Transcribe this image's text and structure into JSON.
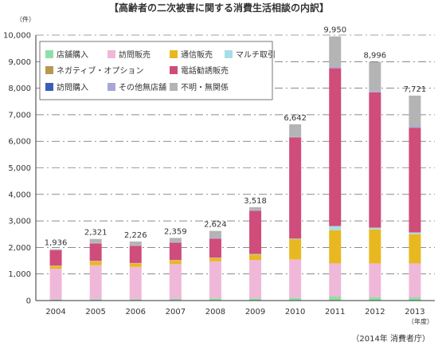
{
  "chart_data": {
    "type": "bar",
    "stacked": true,
    "title": "【高齢者の二次被害に関する消費生活相談の内訳】",
    "ylabel": "（件）",
    "xlabel_suffix": "（年度）",
    "source": "（2014年 消費者庁）",
    "ylim": [
      0,
      10000
    ],
    "yticks": [
      0,
      1000,
      2000,
      3000,
      4000,
      5000,
      6000,
      7000,
      8000,
      9000,
      10000
    ],
    "ytick_labels": [
      "0",
      "1,000",
      "2,000",
      "3,000",
      "4,000",
      "5,000",
      "6,000",
      "7,000",
      "8,000",
      "9,000",
      "10,000"
    ],
    "categories": [
      "2004",
      "2005",
      "2006",
      "2007",
      "2008",
      "2009",
      "2010",
      "2011",
      "2012",
      "2013"
    ],
    "totals": [
      "1,936",
      "2,321",
      "2,226",
      "2,359",
      "2,624",
      "3,518",
      "6,642",
      "9,950",
      "8,996",
      "7,721"
    ],
    "legend_position": "top-left",
    "series": [
      {
        "name": "店舗購入",
        "color": "#8fe0a6",
        "values": [
          40,
          50,
          50,
          60,
          80,
          80,
          100,
          150,
          130,
          120
        ]
      },
      {
        "name": "訪問販売",
        "color": "#f0b8d8",
        "values": [
          1160,
          1280,
          1220,
          1320,
          1400,
          1450,
          1450,
          1250,
          1270,
          1280
        ]
      },
      {
        "name": "通信販売",
        "color": "#e8b820",
        "values": [
          100,
          150,
          130,
          130,
          120,
          200,
          760,
          1250,
          1280,
          1100
        ]
      },
      {
        "name": "マルチ取引",
        "color": "#a6dde8",
        "values": [
          10,
          10,
          10,
          10,
          10,
          20,
          20,
          150,
          60,
          60
        ]
      },
      {
        "name": "ネガティブ・オプション",
        "color": "#b89850",
        "values": [
          5,
          5,
          5,
          5,
          5,
          5,
          5,
          10,
          10,
          10
        ]
      },
      {
        "name": "電話勧誘販売",
        "color": "#d04c7a",
        "values": [
          581,
          656,
          641,
          654,
          719,
          1623,
          3807,
          5940,
          5090,
          3941
        ]
      },
      {
        "name": "訪問購入",
        "color": "#3a5eb8",
        "values": [
          0,
          0,
          0,
          0,
          0,
          0,
          0,
          0,
          0,
          0
        ]
      },
      {
        "name": "その他無店舗",
        "color": "#a8a8d8",
        "values": [
          10,
          20,
          20,
          20,
          20,
          20,
          20,
          50,
          50,
          50
        ]
      },
      {
        "name": "不明・無関係",
        "color": "#b4b4b4",
        "values": [
          30,
          150,
          150,
          160,
          270,
          120,
          480,
          1150,
          1106,
          1160
        ]
      }
    ]
  }
}
